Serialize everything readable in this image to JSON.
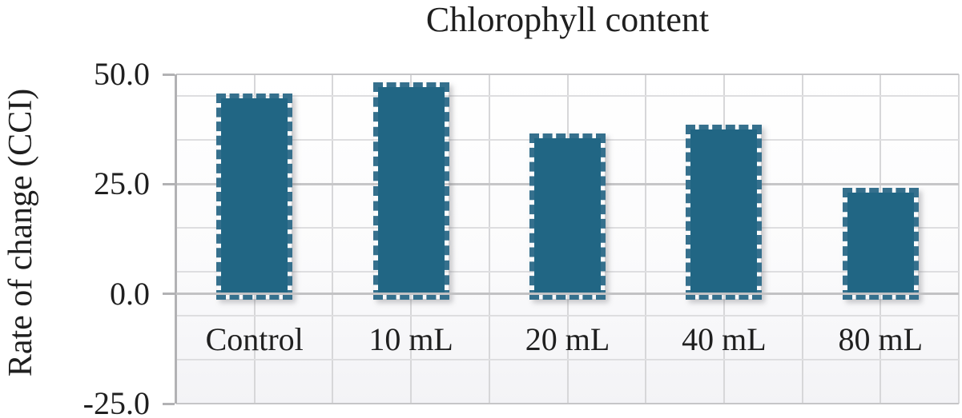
{
  "figure_title": "Chlorophyll content",
  "chart_data": {
    "type": "bar",
    "title": "Chlorophyll content",
    "ylabel": "Rate of change (CCI)",
    "xlabel": "",
    "categories": [
      "Control",
      "10 mL",
      "20 mL",
      "40 mL",
      "80 mL"
    ],
    "values": [
      44.5,
      47,
      35.5,
      37.5,
      23
    ],
    "ylim": [
      -25,
      50
    ],
    "y_major_unit": 25,
    "y_minor_unit": 10,
    "y_major_ticks": [
      50,
      25,
      0,
      -25
    ],
    "y_tick_labels": [
      "50.0",
      "25.0",
      "0.0",
      "-25.0"
    ],
    "y_minor_gridlines": [
      45,
      35,
      15,
      5,
      -5,
      -15
    ],
    "grid": {
      "horizontal_major": true,
      "horizontal_minor": true,
      "vertical_half_category": true
    },
    "legend_position": "none",
    "bar_fill_color": "#216684",
    "bar_border_color": "#35708d",
    "bar_border_style": "dashed"
  }
}
